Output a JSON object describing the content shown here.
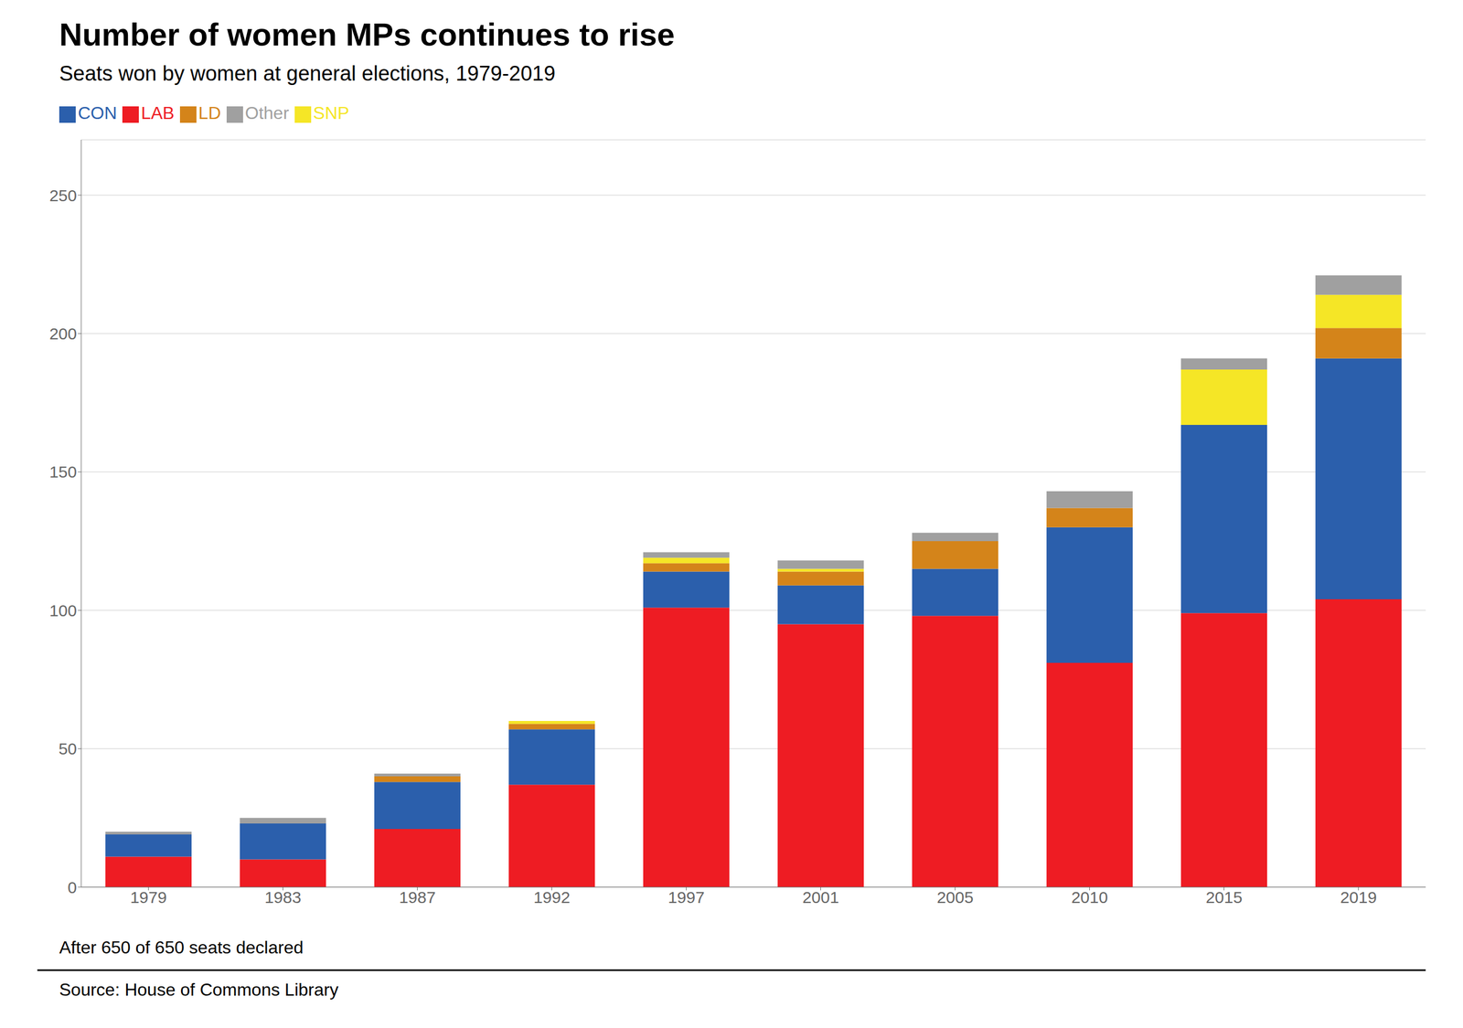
{
  "chart_data": {
    "type": "bar",
    "title": "Number of women MPs continues to rise",
    "subtitle": "Seats won by women at general elections, 1979-2019",
    "annotations": [
      "After 650 of 650 seats declared",
      "Source: House of Commons Library"
    ],
    "categories": [
      "1979",
      "1983",
      "1987",
      "1992",
      "1997",
      "2001",
      "2005",
      "2010",
      "2015",
      "2019"
    ],
    "series": [
      {
        "name": "LAB",
        "color": "#ee1c23",
        "values": [
          11,
          10,
          21,
          37,
          101,
          95,
          98,
          81,
          99,
          104
        ]
      },
      {
        "name": "CON",
        "color": "#2b5fac",
        "values": [
          8,
          13,
          17,
          20,
          13,
          14,
          17,
          49,
          68,
          87
        ]
      },
      {
        "name": "LD",
        "color": "#d4841a",
        "values": [
          0,
          0,
          2,
          2,
          3,
          5,
          10,
          7,
          0,
          11
        ]
      },
      {
        "name": "SNP",
        "color": "#f5e626",
        "values": [
          0,
          0,
          0,
          1,
          2,
          1,
          0,
          0,
          20,
          12
        ]
      },
      {
        "name": "Other",
        "color": "#a0a0a0",
        "values": [
          1,
          2,
          1,
          0,
          2,
          3,
          3,
          6,
          4,
          7
        ]
      }
    ],
    "stacked": true,
    "ylim": [
      0,
      270
    ],
    "yticks": [
      0,
      50,
      100,
      150,
      200,
      250
    ],
    "grid": true,
    "legend": "upper left"
  }
}
